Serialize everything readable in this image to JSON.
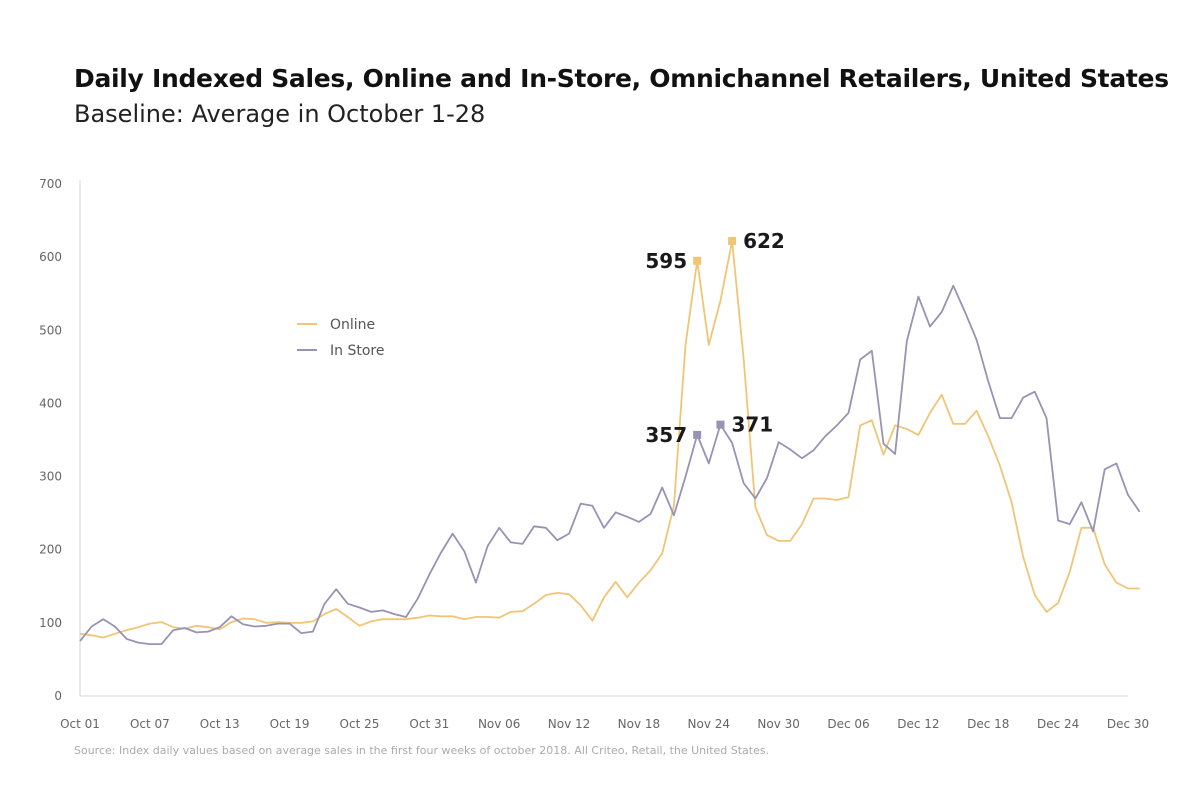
{
  "header": {
    "title": "Daily Indexed Sales, Online and In-Store, Omnichannel Retailers, United States",
    "subtitle": "Baseline: Average in October 1-28"
  },
  "footer": {
    "source": "Source: Index daily values based on average sales in the first four weeks of october 2018. All Criteo, Retail, the United States."
  },
  "chart_data": {
    "type": "line",
    "title": "Daily Indexed Sales, Online and In-Store, Omnichannel Retailers, United States",
    "subtitle": "Baseline: Average in October 1-28",
    "xlabel": "",
    "ylabel": "",
    "ylim": [
      0,
      700
    ],
    "yticks": [
      0,
      100,
      200,
      300,
      400,
      500,
      600,
      700
    ],
    "xlim": [
      0,
      90
    ],
    "xticks": [
      {
        "day": 0,
        "label": "Oct 01"
      },
      {
        "day": 6,
        "label": "Oct 07"
      },
      {
        "day": 12,
        "label": "Oct 13"
      },
      {
        "day": 18,
        "label": "Oct 19"
      },
      {
        "day": 24,
        "label": "Oct 25"
      },
      {
        "day": 30,
        "label": "Oct 31"
      },
      {
        "day": 36,
        "label": "Nov 06"
      },
      {
        "day": 42,
        "label": "Nov 12"
      },
      {
        "day": 48,
        "label": "Nov 18"
      },
      {
        "day": 54,
        "label": "Nov 24"
      },
      {
        "day": 60,
        "label": "Nov 30"
      },
      {
        "day": 66,
        "label": "Dec 06"
      },
      {
        "day": 72,
        "label": "Dec 12"
      },
      {
        "day": 78,
        "label": "Dec 18"
      },
      {
        "day": 84,
        "label": "Dec 24"
      },
      {
        "day": 90,
        "label": "Dec 30"
      }
    ],
    "grid": false,
    "legend": "upper-left of plot area",
    "series": [
      {
        "name": "Online",
        "color": "#f0c575",
        "values": [
          85,
          83,
          80,
          85,
          90,
          94,
          99,
          101,
          94,
          92,
          96,
          94,
          91,
          101,
          106,
          105,
          100,
          101,
          100,
          100,
          102,
          112,
          119,
          108,
          96,
          102,
          105,
          105,
          105,
          107,
          110,
          109,
          109,
          105,
          108,
          108,
          107,
          115,
          116,
          126,
          138,
          141,
          139,
          124,
          103,
          135,
          156,
          135,
          155,
          172,
          195,
          260,
          480,
          595,
          480,
          540,
          622,
          460,
          258,
          220,
          212,
          212,
          235,
          270,
          270,
          268,
          272,
          370,
          377,
          330,
          370,
          365,
          357,
          387,
          412,
          372,
          372,
          390,
          355,
          315,
          265,
          190,
          138,
          115,
          127,
          170,
          230,
          230,
          180,
          155,
          147,
          147
        ]
      },
      {
        "name": "In Store",
        "color": "#9893b5",
        "values": [
          75,
          95,
          105,
          95,
          78,
          73,
          71,
          71,
          90,
          93,
          87,
          88,
          94,
          109,
          98,
          95,
          96,
          99,
          99,
          86,
          88,
          126,
          146,
          126,
          121,
          115,
          117,
          112,
          108,
          133,
          166,
          196,
          222,
          198,
          155,
          205,
          230,
          210,
          208,
          232,
          230,
          213,
          222,
          263,
          260,
          230,
          251,
          245,
          238,
          249,
          285,
          247,
          300,
          357,
          318,
          371,
          346,
          291,
          270,
          298,
          347,
          337,
          325,
          336,
          355,
          370,
          387,
          460,
          472,
          345,
          331,
          485,
          546,
          505,
          525,
          561,
          525,
          487,
          430,
          380,
          380,
          408,
          416,
          380,
          240,
          235,
          265,
          225,
          310,
          318,
          275,
          252
        ]
      }
    ],
    "annotations": [
      {
        "series": "Online",
        "day": 53,
        "value": 595,
        "label": "595",
        "side": "left"
      },
      {
        "series": "Online",
        "day": 56,
        "value": 622,
        "label": "622",
        "side": "right"
      },
      {
        "series": "In Store",
        "day": 53,
        "value": 357,
        "label": "357",
        "side": "left"
      },
      {
        "series": "In Store",
        "day": 55,
        "value": 371,
        "label": "371",
        "side": "right"
      }
    ]
  }
}
